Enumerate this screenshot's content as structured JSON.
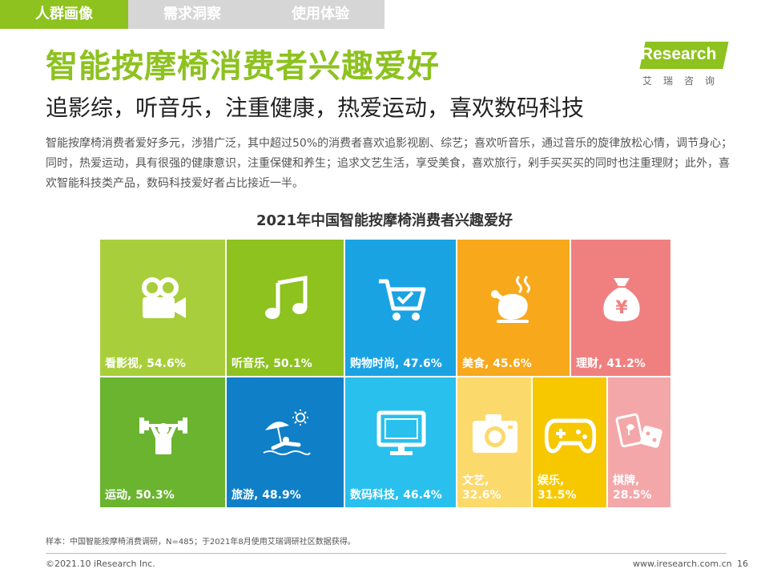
{
  "tabs": [
    {
      "label": "人群画像"
    },
    {
      "label": "需求洞察"
    },
    {
      "label": "使用体验"
    }
  ],
  "title": "智能按摩椅消费者兴趣爱好",
  "subtitle": "追影综，听音乐，注重健康，热爱运动，喜欢数码科技",
  "description": "智能按摩椅消费者爱好多元，涉猎广泛，其中超过50%的消费者喜欢追影视剧、综艺；喜欢听音乐，通过音乐的旋律放松心情，调节身心；同时，热爱运动，具有很强的健康意识，注重保健和养生；追求文艺生活，享受美食，喜欢旅行，剁手买买买的同时也注重理财；此外，喜欢智能科技类产品，数码科技爱好者占比接近一半。",
  "logo": {
    "text": "iResearch",
    "cn": "艾瑞咨询"
  },
  "chart_data": {
    "type": "treemap",
    "title": "2021年中国智能按摩椅消费者兴趣爱好",
    "unit": "%",
    "items": [
      {
        "name": "看影视",
        "value": 54.6,
        "label": "看影视, 54.6%",
        "icon": "movie-camera-icon",
        "color": "#a8cf3b"
      },
      {
        "name": "听音乐",
        "value": 50.1,
        "label": "听音乐, 50.1%",
        "icon": "music-note-icon",
        "color": "#8dc21f"
      },
      {
        "name": "购物时尚",
        "value": 47.6,
        "label": "购物时尚, 47.6%",
        "icon": "shopping-cart-icon",
        "color": "#1aa3e3"
      },
      {
        "name": "美食",
        "value": 45.6,
        "label": "美食, 45.6%",
        "icon": "roast-chicken-icon",
        "color": "#f7a81b"
      },
      {
        "name": "理财",
        "value": 41.2,
        "label": "理财, 41.2%",
        "icon": "money-bag-icon",
        "color": "#f08080"
      },
      {
        "name": "运动",
        "value": 50.3,
        "label": "运动, 50.3%",
        "icon": "weightlifting-icon",
        "color": "#6ab42f"
      },
      {
        "name": "旅游",
        "value": 48.9,
        "label": "旅游, 48.9%",
        "icon": "beach-icon",
        "color": "#0f7fc8"
      },
      {
        "name": "数码科技",
        "value": 46.4,
        "label": "数码科技, 46.4%",
        "icon": "monitor-icon",
        "color": "#29c0ee"
      },
      {
        "name": "文艺",
        "value": 32.6,
        "label": "文艺, 32.6%",
        "icon": "camera-icon",
        "color": "#fcd96b"
      },
      {
        "name": "娱乐",
        "value": 31.5,
        "label": "娱乐, 31.5%",
        "icon": "gamepad-icon",
        "color": "#f7c800"
      },
      {
        "name": "棋牌",
        "value": 28.5,
        "label": "棋牌, 28.5%",
        "icon": "cards-dice-icon",
        "color": "#f4a7a9"
      }
    ]
  },
  "footer": {
    "sample": "样本：中国智能按摩椅消费调研，N=485；于2021年8月使用艾瑞调研社区数据获得。",
    "copyright": "©2021.10 iResearch Inc.",
    "website": "www.iresearch.com.cn",
    "page": "16"
  }
}
